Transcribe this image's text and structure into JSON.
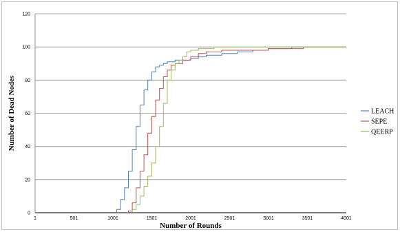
{
  "chart_data": {
    "type": "line",
    "xlabel": "Number of Rounds",
    "ylabel": "Number of Dead Nodes",
    "x_ticks": [
      "1",
      "501",
      "1001",
      "1501",
      "2001",
      "2501",
      "3001",
      "3501",
      "4001"
    ],
    "y_ticks": [
      "0",
      "20",
      "40",
      "60",
      "80",
      "100",
      "120"
    ],
    "xlim": [
      1,
      4001
    ],
    "ylim": [
      0,
      120
    ],
    "grid": "horizontal",
    "legend": "right",
    "series": [
      {
        "name": "LEACH",
        "color": "#4f81bd",
        "points": [
          [
            1,
            0
          ],
          [
            1001,
            0
          ],
          [
            1050,
            2
          ],
          [
            1100,
            8
          ],
          [
            1150,
            15
          ],
          [
            1200,
            25
          ],
          [
            1250,
            38
          ],
          [
            1300,
            52
          ],
          [
            1350,
            65
          ],
          [
            1400,
            74
          ],
          [
            1450,
            80
          ],
          [
            1500,
            85
          ],
          [
            1550,
            88
          ],
          [
            1600,
            89
          ],
          [
            1650,
            90
          ],
          [
            1700,
            91
          ],
          [
            1800,
            92
          ],
          [
            1900,
            92
          ],
          [
            2000,
            93
          ],
          [
            2100,
            94
          ],
          [
            2200,
            95
          ],
          [
            2400,
            96
          ],
          [
            2600,
            97
          ],
          [
            2800,
            98
          ],
          [
            3000,
            99
          ],
          [
            3200,
            99
          ],
          [
            3300,
            100
          ],
          [
            4001,
            100
          ]
        ]
      },
      {
        "name": "SEPE",
        "color": "#c0504d",
        "points": [
          [
            1,
            0
          ],
          [
            1150,
            0
          ],
          [
            1200,
            1
          ],
          [
            1250,
            6
          ],
          [
            1300,
            15
          ],
          [
            1350,
            25
          ],
          [
            1400,
            35
          ],
          [
            1450,
            48
          ],
          [
            1500,
            58
          ],
          [
            1550,
            68
          ],
          [
            1600,
            75
          ],
          [
            1650,
            82
          ],
          [
            1700,
            86
          ],
          [
            1750,
            89
          ],
          [
            1800,
            90
          ],
          [
            1900,
            92
          ],
          [
            2000,
            94
          ],
          [
            2100,
            96
          ],
          [
            2200,
            97
          ],
          [
            2400,
            98
          ],
          [
            2600,
            98
          ],
          [
            3000,
            99
          ],
          [
            3400,
            99
          ],
          [
            3450,
            100
          ],
          [
            4001,
            100
          ]
        ]
      },
      {
        "name": "QEERP",
        "color": "#9bbb59",
        "points": [
          [
            1,
            0
          ],
          [
            1200,
            0
          ],
          [
            1250,
            2
          ],
          [
            1300,
            5
          ],
          [
            1350,
            10
          ],
          [
            1400,
            16
          ],
          [
            1450,
            22
          ],
          [
            1500,
            30
          ],
          [
            1550,
            40
          ],
          [
            1600,
            52
          ],
          [
            1650,
            66
          ],
          [
            1700,
            80
          ],
          [
            1750,
            86
          ],
          [
            1800,
            90
          ],
          [
            1850,
            92
          ],
          [
            1900,
            94
          ],
          [
            1950,
            97
          ],
          [
            2000,
            98
          ],
          [
            2100,
            99
          ],
          [
            2200,
            99
          ],
          [
            2300,
            100
          ],
          [
            4001,
            100
          ]
        ]
      }
    ]
  }
}
